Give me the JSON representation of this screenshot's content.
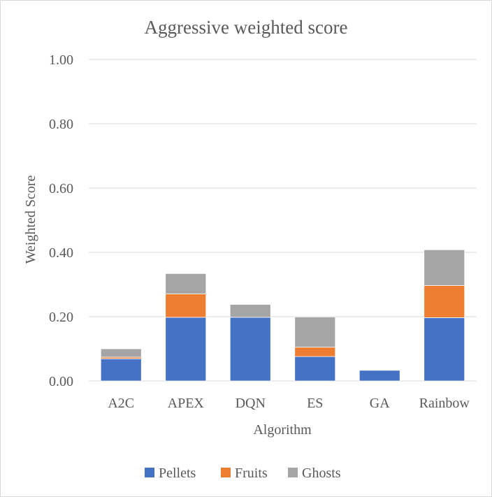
{
  "chart_data": {
    "type": "bar",
    "stacked": true,
    "title": "Aggressive weighted score",
    "xlabel": "Algorithm",
    "ylabel": "Weighted Score",
    "ylim": [
      0,
      1
    ],
    "yticks": [
      "0.00",
      "0.20",
      "0.40",
      "0.60",
      "0.80",
      "1.00"
    ],
    "ytick_values": [
      0,
      0.2,
      0.4,
      0.6,
      0.8,
      1.0
    ],
    "grid": true,
    "legend_position": "bottom",
    "categories": [
      "A2C",
      "APEX",
      "DQN",
      "ES",
      "GA",
      "Rainbow"
    ],
    "series": [
      {
        "name": "Pellets",
        "color": "#4472c4",
        "values": [
          0.069,
          0.198,
          0.198,
          0.076,
          0.033,
          0.197
        ]
      },
      {
        "name": "Fruits",
        "color": "#ed7d31",
        "values": [
          0.005,
          0.073,
          0.0,
          0.029,
          0.0,
          0.1
        ]
      },
      {
        "name": "Ghosts",
        "color": "#a5a5a5",
        "values": [
          0.026,
          0.063,
          0.04,
          0.094,
          0.0,
          0.111
        ]
      }
    ]
  }
}
